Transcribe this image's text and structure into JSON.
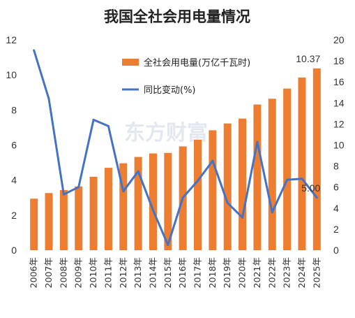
{
  "chart_data": {
    "type": "bar",
    "title": "我国全社会用电量情况",
    "categories": [
      "2006年",
      "2007年",
      "2008年",
      "2009年",
      "2010年",
      "2011年",
      "2012年",
      "2013年",
      "2014年",
      "2015年",
      "2016年",
      "2017年",
      "2018年",
      "2019年",
      "2020年",
      "2021年",
      "2022年",
      "2023年",
      "2024年",
      "2025年"
    ],
    "series": [
      {
        "name": "全社会用电量(万亿千瓦时)",
        "type": "bar",
        "axis": "left",
        "color": "#ED7D31",
        "values": [
          2.94,
          3.26,
          3.43,
          3.64,
          4.19,
          4.7,
          4.96,
          5.32,
          5.52,
          5.55,
          5.92,
          6.3,
          6.84,
          7.23,
          7.51,
          8.31,
          8.64,
          9.22,
          9.85,
          10.37
        ]
      },
      {
        "name": "同比变动(%)",
        "type": "line",
        "axis": "right",
        "color": "#4472C4",
        "values": [
          19.0,
          14.4,
          5.3,
          6.0,
          12.4,
          11.8,
          5.6,
          7.5,
          3.8,
          0.5,
          5.0,
          6.6,
          8.5,
          4.5,
          3.1,
          10.3,
          3.6,
          6.7,
          6.8,
          5.0
        ]
      }
    ],
    "ylim": [
      0,
      12
    ],
    "yticks": [
      "0",
      "2",
      "4",
      "6",
      "8",
      "10",
      "12"
    ],
    "y2lim": [
      0,
      20
    ],
    "y2ticks": [
      "0",
      "2",
      "4",
      "6",
      "8",
      "10",
      "12",
      "14",
      "16",
      "18",
      "20"
    ],
    "data_labels": [
      {
        "series": 0,
        "index": 19,
        "text": "10.37"
      },
      {
        "series": 1,
        "index": 19,
        "text": "5.00"
      }
    ],
    "legend": {
      "position": "top-center",
      "items": [
        "全社会用电量(万亿千瓦时)",
        "同比变动(%)"
      ]
    },
    "grid": false,
    "watermark": "东方财富"
  }
}
